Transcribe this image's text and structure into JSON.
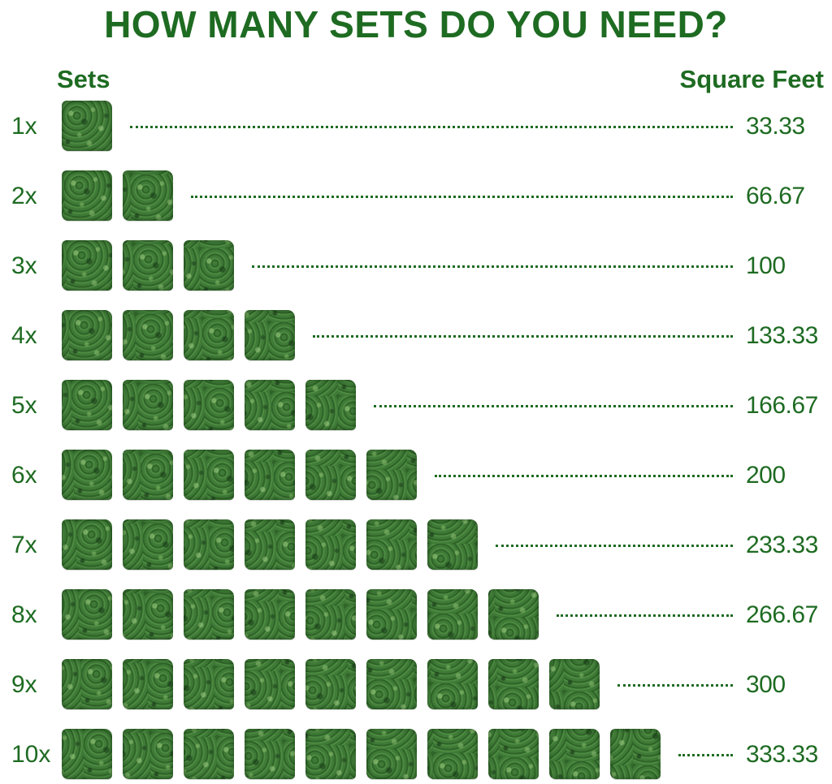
{
  "title": "HOW MANY SETS DO YOU NEED?",
  "headers": {
    "sets": "Sets",
    "area": "Square Feet"
  },
  "colors": {
    "text": "#1e6b22",
    "tile": "#356d2f"
  },
  "tile_icon": "boxwood-panel-icon",
  "rows": [
    {
      "label": "1x",
      "count": 1,
      "value": "33.33"
    },
    {
      "label": "2x",
      "count": 2,
      "value": "66.67"
    },
    {
      "label": "3x",
      "count": 3,
      "value": "100"
    },
    {
      "label": "4x",
      "count": 4,
      "value": "133.33"
    },
    {
      "label": "5x",
      "count": 5,
      "value": "166.67"
    },
    {
      "label": "6x",
      "count": 6,
      "value": "200"
    },
    {
      "label": "7x",
      "count": 7,
      "value": "233.33"
    },
    {
      "label": "8x",
      "count": 8,
      "value": "266.67"
    },
    {
      "label": "9x",
      "count": 9,
      "value": "300"
    },
    {
      "label": "10x",
      "count": 10,
      "value": "333.33"
    }
  ]
}
